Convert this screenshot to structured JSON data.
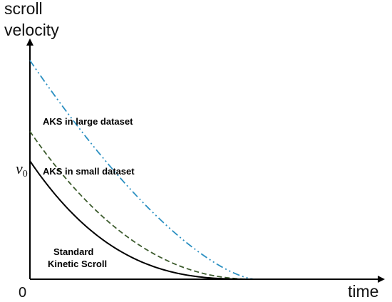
{
  "chart_data": {
    "type": "line",
    "title": "",
    "xlabel": "time",
    "ylabel_lines": [
      "scroll",
      "velocity"
    ],
    "origin_label": "0",
    "y_marker": {
      "symbol": "v",
      "subscript": "0",
      "value": 1.0
    },
    "xlim": [
      0,
      10
    ],
    "ylim": [
      0,
      2
    ],
    "grid": false,
    "legend": "none",
    "series": [
      {
        "name": "AKS in large dataset",
        "label_lines": [
          "AKS in large dataset"
        ],
        "color": "#2a8fc1",
        "dash": "dash-dot-dot",
        "y0": 1.85,
        "decay_time": 6.6,
        "curvature": 1.5
      },
      {
        "name": "AKS in small dataset",
        "label_lines": [
          "AKS in small dataset"
        ],
        "color": "#3d5c2e",
        "dash": "dashed",
        "y0": 1.25,
        "decay_time": 6.6,
        "curvature": 2.2
      },
      {
        "name": "Standard Kinetic Scroll",
        "label_lines": [
          "Standard",
          "Kinetic Scroll"
        ],
        "color": "#000000",
        "dash": "solid",
        "y0": 1.0,
        "decay_time": 6.6,
        "curvature": 2.8
      }
    ]
  }
}
